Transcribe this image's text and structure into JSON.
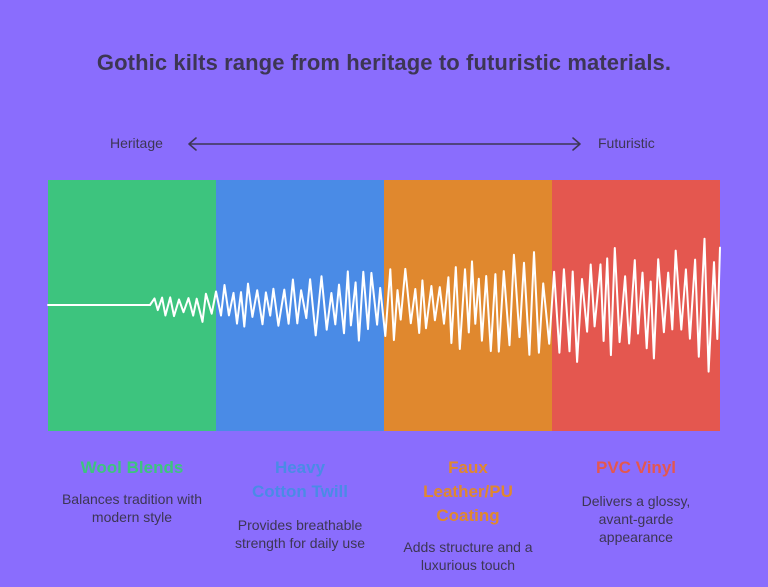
{
  "title": "Gothic kilts range from heritage to futuristic materials.",
  "scale": {
    "left_label": "Heritage",
    "right_label": "Futuristic"
  },
  "categories": [
    {
      "title": "Wool Blends",
      "description": "Balances tradition with modern style",
      "color": "#3dc47e"
    },
    {
      "title": "Heavy Cotton Twill",
      "description": "Provides breathable strength for daily use",
      "color": "#4a8be6"
    },
    {
      "title": "Faux Leather/PU Coating",
      "description": "Adds structure and a luxurious touch",
      "color": "#e0882e"
    },
    {
      "title": "PVC Vinyl",
      "description": "Delivers a glossy, avant-garde appearance",
      "color": "#e4574f"
    }
  ],
  "colors": {
    "background": "#8a6dfd",
    "text": "#3d3654",
    "wave": "#ffffff"
  }
}
